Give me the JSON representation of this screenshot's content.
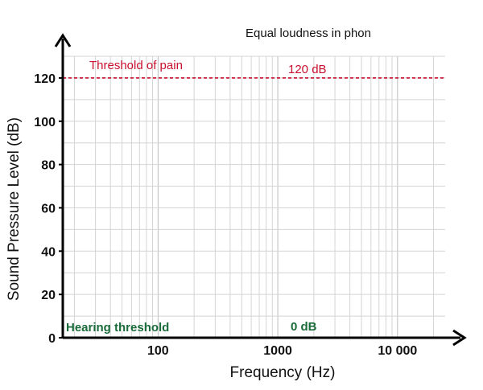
{
  "chart_data": {
    "type": "line",
    "title": "Equal loudness in phon",
    "xlabel": "Frequency (Hz)",
    "ylabel": "Sound Pressure Level (dB)",
    "xscale": "log",
    "xlim": [
      16,
      25000
    ],
    "ylim": [
      0,
      130
    ],
    "x_ticks": [
      {
        "value": 100,
        "label": "100"
      },
      {
        "value": 1000,
        "label": "1000"
      },
      {
        "value": 10000,
        "label": "10 000"
      }
    ],
    "y_ticks": [
      0,
      20,
      40,
      60,
      80,
      100,
      120
    ],
    "grid": true,
    "series": [
      {
        "name": "Threshold of pain",
        "value_label": "120 dB",
        "color": "#c8102e",
        "style": "dashed",
        "x": [
          16,
          25000
        ],
        "y": [
          120,
          120
        ]
      },
      {
        "name": "Hearing threshold",
        "value_label": "0 dB",
        "color": "#1a6b3a",
        "style": "dashed",
        "x": [
          16,
          25000
        ],
        "y": [
          0,
          0
        ]
      }
    ]
  }
}
